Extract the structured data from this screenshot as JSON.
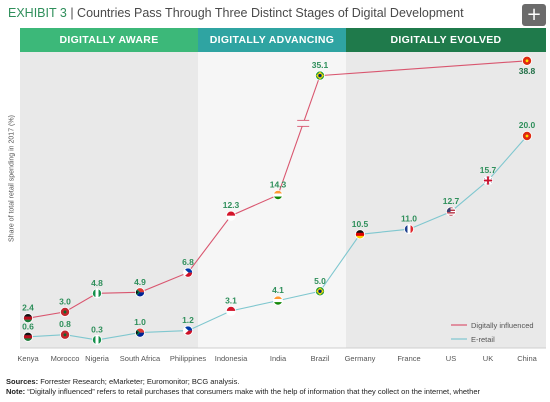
{
  "header": {
    "exhibit": "EXHIBIT 3",
    "separator": "|",
    "title": "Countries Pass Through Three Distinct Stages of Digital Development"
  },
  "stages": [
    "DIGITALLY AWARE",
    "DIGITALLY ADVANCING",
    "DIGITALLY EVOLVED"
  ],
  "colors": {
    "influenced": "#d9566f",
    "eretail": "#7fc7cf",
    "label_green": "#2f8f5b",
    "stage_aware": "#3cb879",
    "stage_advancing": "#2fa4a2",
    "stage_evolved": "#1f7a4b"
  },
  "chart_data": {
    "type": "line",
    "ylabel": "Share of total retail spending in 2017 (%)",
    "categories": [
      "Kenya",
      "Morocco",
      "Nigeria",
      "South Africa",
      "Philippines",
      "Indonesia",
      "India",
      "Brazil",
      "Germany",
      "France",
      "US",
      "UK",
      "China"
    ],
    "series": [
      {
        "name": "Digitally influenced",
        "values": [
          2.4,
          3.0,
          4.8,
          4.9,
          6.8,
          12.3,
          14.3,
          35.1,
          null,
          null,
          null,
          null,
          38.8
        ],
        "labels": [
          "2.4",
          "3.0",
          "4.8",
          "4.9",
          "6.8",
          "12.3",
          "14.3",
          "35.1",
          "",
          "",
          "",
          "",
          "38.8"
        ]
      },
      {
        "name": "E-retail",
        "values": [
          0.6,
          0.8,
          0.3,
          1.0,
          1.2,
          3.1,
          4.1,
          5.0,
          10.5,
          11.0,
          12.7,
          15.7,
          20.0
        ],
        "labels": [
          "0.6",
          "0.8",
          "0.3",
          "1.0",
          "1.2",
          "3.1",
          "4.1",
          "5.0",
          "10.5",
          "11.0",
          "12.7",
          "15.7",
          "20.0"
        ]
      }
    ],
    "axis_break": true,
    "legend_position": "bottom-right"
  },
  "footer": {
    "sources_label": "Sources:",
    "sources_text": " Forrester Research; eMarketer; Euromonitor; BCG analysis.",
    "note_label": "Note:",
    "note_text": " “Digitally influenced” refers to retail purchases that consumers make with the help of information that they collect on the internet, whether"
  }
}
